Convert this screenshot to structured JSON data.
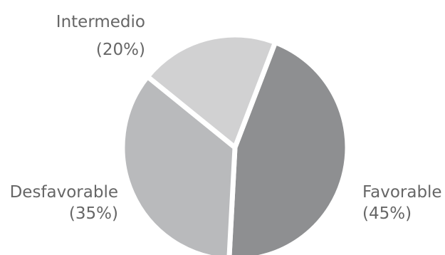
{
  "chart_data": {
    "type": "pie",
    "start_angle": 21,
    "slices": [
      {
        "label": "Favorable",
        "percent_label": "(45%)",
        "value": 45,
        "color": "#8e8f91"
      },
      {
        "label": "Desfavorable",
        "percent_label": "(35%)",
        "value": 35,
        "color": "#b9babc"
      },
      {
        "label": "Intermedio",
        "percent_label": "(20%)",
        "value": 20,
        "color": "#d1d1d2"
      }
    ]
  }
}
